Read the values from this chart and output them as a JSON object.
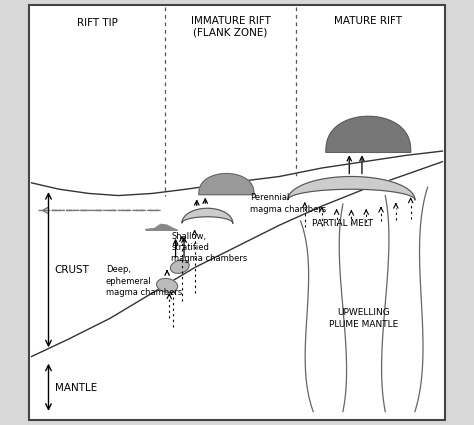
{
  "bg_color": "#d8d8d8",
  "border_color": "#333333",
  "title_rift_tip": "RIFT TIP",
  "title_immature": "IMMATURE RIFT\n(FLANK ZONE)",
  "title_mature": "MATURE RIFT",
  "label_crust": "CRUST",
  "label_mantle": "MANTLE",
  "label_shallow": "Shallow,\nstratified\nmagma chambers",
  "label_deep": "Deep,\nephemeral\nmagma chambers",
  "label_perennial": "Perennial\nmagma chambers",
  "label_partial": "PARTIAL MELT",
  "label_upwelling": "UPWELLING\nPLUME MANTLE",
  "figsize": [
    4.74,
    4.25
  ],
  "dpi": 100
}
